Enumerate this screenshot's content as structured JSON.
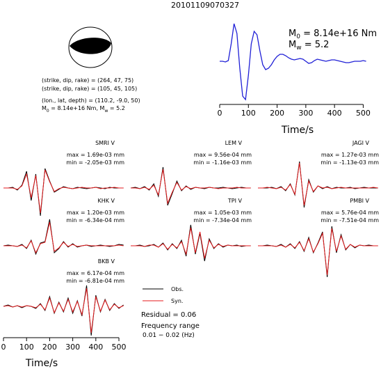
{
  "title": "20101109070327",
  "mechanism": {
    "lines": [
      "(strike, dip, rake) = (264, 47, 75)",
      "(strike, dip, rake) = (105, 45, 105)",
      "(lon., lat, depth) = (110.2, -9.0, 50)"
    ],
    "moment_parts": [
      "M",
      "0",
      " = 8.14e+16 Nm, M",
      "w",
      " = 5.2"
    ]
  },
  "chart_data": [
    {
      "type": "line",
      "annotation_m0": [
        "M",
        "0",
        " = 8.14e+16 Nm"
      ],
      "annotation_mw": [
        "M",
        "w",
        " = 5.2"
      ],
      "x_label": "Time/s",
      "color": "#1f1fd6",
      "xlim": [
        0,
        545
      ],
      "xticks": [
        0,
        100,
        200,
        300,
        400,
        500
      ],
      "ylim": [
        -60,
        60
      ],
      "x": [
        0,
        10,
        20,
        30,
        40,
        50,
        60,
        70,
        80,
        90,
        100,
        110,
        120,
        130,
        140,
        150,
        160,
        170,
        180,
        190,
        200,
        210,
        220,
        230,
        240,
        250,
        260,
        270,
        280,
        290,
        300,
        310,
        320,
        330,
        340,
        350,
        360,
        370,
        380,
        390,
        400,
        410,
        420,
        430,
        440,
        450,
        460,
        470,
        480,
        490,
        500,
        510
      ],
      "values": [
        0,
        0,
        -1,
        1,
        25,
        54,
        40,
        -10,
        -50,
        -55,
        -20,
        25,
        43,
        38,
        15,
        -5,
        -12,
        -10,
        -5,
        2,
        7,
        10,
        10,
        8,
        5,
        3,
        2,
        3,
        4,
        3,
        0,
        -3,
        -2,
        1,
        3,
        2,
        1,
        0,
        1,
        2,
        2,
        1,
        0,
        -1,
        -2,
        -2,
        -1,
        0,
        0,
        0,
        1,
        0
      ]
    },
    {
      "type": "waveforms",
      "series": [
        {
          "name": "Obs.",
          "color": "#000000"
        },
        {
          "name": "Syn.",
          "color": "#e41a1c"
        }
      ],
      "x_label": "Time/s",
      "xlim": [
        0,
        524
      ],
      "xticks": [
        0,
        100,
        200,
        300,
        400,
        500
      ],
      "ylim": [
        -40,
        40
      ],
      "x": [
        0,
        20,
        40,
        60,
        80,
        100,
        120,
        140,
        160,
        180,
        200,
        220,
        240,
        260,
        280,
        300,
        320,
        340,
        360,
        380,
        400,
        420,
        440,
        460,
        480,
        500,
        520
      ],
      "panels": [
        {
          "title": "SMRI V",
          "max": "max = 1.69e-03 mm",
          "min": "min = -2.05e-03 mm",
          "values": [
            [
              0,
              0,
              1,
              -3,
              4,
              24,
              -18,
              20,
              -40,
              28,
              10,
              -6,
              -2,
              2,
              0,
              -1,
              1,
              0,
              -1,
              0,
              1,
              0,
              -1,
              1,
              0,
              0,
              0
            ],
            [
              0,
              0,
              0,
              -2,
              3,
              20,
              -14,
              18,
              -36,
              26,
              9,
              -5,
              -1,
              1,
              0,
              -1,
              0,
              1,
              0,
              0,
              1,
              -1,
              0,
              0,
              1,
              0,
              0
            ]
          ]
        },
        {
          "title": "LEM V",
          "max": "max = 9.56e-04 mm",
          "min": "min = -1.16e-03 mm",
          "values": [
            [
              0,
              1,
              -1,
              2,
              -3,
              6,
              -12,
              30,
              -25,
              -8,
              10,
              -4,
              3,
              -2,
              1,
              0,
              -1,
              1,
              0,
              0,
              1,
              0,
              -1,
              0,
              1,
              0,
              0
            ],
            [
              0,
              0,
              -1,
              1,
              -2,
              4,
              -10,
              27,
              -22,
              -6,
              8,
              -3,
              2,
              -1,
              1,
              0,
              0,
              1,
              0,
              -1,
              0,
              0,
              0,
              1,
              0,
              0,
              0
            ]
          ]
        },
        {
          "title": "JAGI V",
          "max": "max = 1.27e-03 mm",
          "min": "min = -1.13e-03 mm",
          "values": [
            [
              0,
              0,
              0,
              1,
              -1,
              2,
              -4,
              6,
              -10,
              38,
              -28,
              12,
              -6,
              3,
              -1,
              2,
              -1,
              1,
              0,
              0,
              1,
              -1,
              0,
              1,
              0,
              0,
              0
            ],
            [
              0,
              0,
              1,
              0,
              -1,
              1,
              -3,
              5,
              -9,
              36,
              -25,
              10,
              -5,
              3,
              0,
              1,
              -1,
              0,
              1,
              0,
              0,
              0,
              0,
              0,
              0,
              1,
              0
            ]
          ]
        },
        {
          "title": "KHK V",
          "max": "max = 1.20e-03 mm",
          "min": "min = -6.34e-04 mm",
          "values": [
            [
              0,
              1,
              0,
              -1,
              2,
              -4,
              8,
              -12,
              4,
              6,
              38,
              -10,
              -4,
              6,
              -2,
              3,
              -2,
              0,
              1,
              -1,
              0,
              1,
              0,
              -1,
              0,
              2,
              1
            ],
            [
              0,
              0,
              0,
              -1,
              1,
              -3,
              7,
              -10,
              3,
              5,
              34,
              -8,
              -3,
              5,
              -1,
              2,
              -1,
              0,
              1,
              0,
              0,
              0,
              0,
              0,
              0,
              1,
              0
            ]
          ]
        },
        {
          "title": "TPI V",
          "max": "max = 1.05e-03 mm",
          "min": "min = -7.34e-04 mm",
          "values": [
            [
              0,
              0,
              1,
              -1,
              0,
              2,
              -2,
              4,
              -6,
              3,
              -4,
              8,
              -15,
              30,
              -12,
              18,
              -22,
              10,
              -4,
              3,
              -2,
              1,
              0,
              1,
              -1,
              0,
              0
            ],
            [
              0,
              0,
              0,
              -1,
              1,
              1,
              -2,
              3,
              -5,
              2,
              -3,
              6,
              -12,
              26,
              -10,
              20,
              -18,
              8,
              -3,
              2,
              -1,
              1,
              0,
              0,
              0,
              0,
              0
            ]
          ]
        },
        {
          "title": "PMBI V",
          "max": "max = 5.76e-04 mm",
          "min": "min = -7.51e-04 mm",
          "values": [
            [
              0,
              0,
              1,
              0,
              -1,
              2,
              -2,
              3,
              -4,
              6,
              -8,
              12,
              -10,
              4,
              20,
              -45,
              28,
              -10,
              16,
              -6,
              2,
              -3,
              1,
              0,
              1,
              0,
              0
            ],
            [
              0,
              0,
              0,
              0,
              -1,
              1,
              -2,
              2,
              -3,
              5,
              -7,
              10,
              -9,
              3,
              18,
              -42,
              25,
              -8,
              14,
              -5,
              2,
              -2,
              1,
              0,
              0,
              0,
              0
            ]
          ]
        },
        {
          "title": "BKB V",
          "max": "max = 6.17e-04 mm",
          "min": "min = -6.81e-04 mm",
          "values": [
            [
              0,
              2,
              -1,
              1,
              -2,
              1,
              0,
              -3,
              4,
              -6,
              14,
              -10,
              6,
              -8,
              12,
              -10,
              8,
              -14,
              30,
              -42,
              16,
              -8,
              10,
              -6,
              4,
              -3,
              2
            ],
            [
              0,
              1,
              -1,
              1,
              -1,
              1,
              0,
              -2,
              3,
              -5,
              12,
              -9,
              5,
              -7,
              10,
              -8,
              7,
              -12,
              26,
              -38,
              14,
              -7,
              9,
              -5,
              3,
              -2,
              1
            ]
          ]
        }
      ],
      "residual": "Residual = 0.06",
      "frequency_title": "Frequency range",
      "frequency_range": "0.01 − 0.02 (Hz)"
    }
  ]
}
